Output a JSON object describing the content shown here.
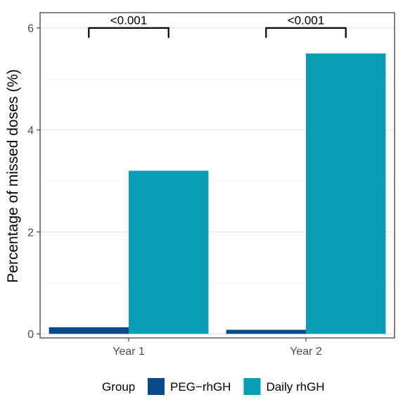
{
  "chart_data": {
    "type": "bar",
    "categories": [
      "Year 1",
      "Year 2"
    ],
    "series": [
      {
        "name": "PEG−rhGH",
        "values": [
          0.13,
          0.08
        ],
        "color": "#0a4a8b"
      },
      {
        "name": "Daily rhGH",
        "values": [
          3.2,
          5.5
        ],
        "color": "#0a9bb5"
      }
    ],
    "ylabel": "Percentage of missed doses (%)",
    "xlabel": "",
    "ylim": [
      -0.08,
      6.3
    ],
    "yticks": [
      0,
      2,
      4,
      6
    ],
    "grid": true,
    "legend": {
      "title": "Group",
      "position": "bottom"
    },
    "annotations": [
      {
        "category": "Year 1",
        "label": "<0.001",
        "from_series": 0,
        "to_series": 1,
        "y": 6.0
      },
      {
        "category": "Year 2",
        "label": "<0.001",
        "from_series": 0,
        "to_series": 1,
        "y": 6.0
      }
    ]
  }
}
